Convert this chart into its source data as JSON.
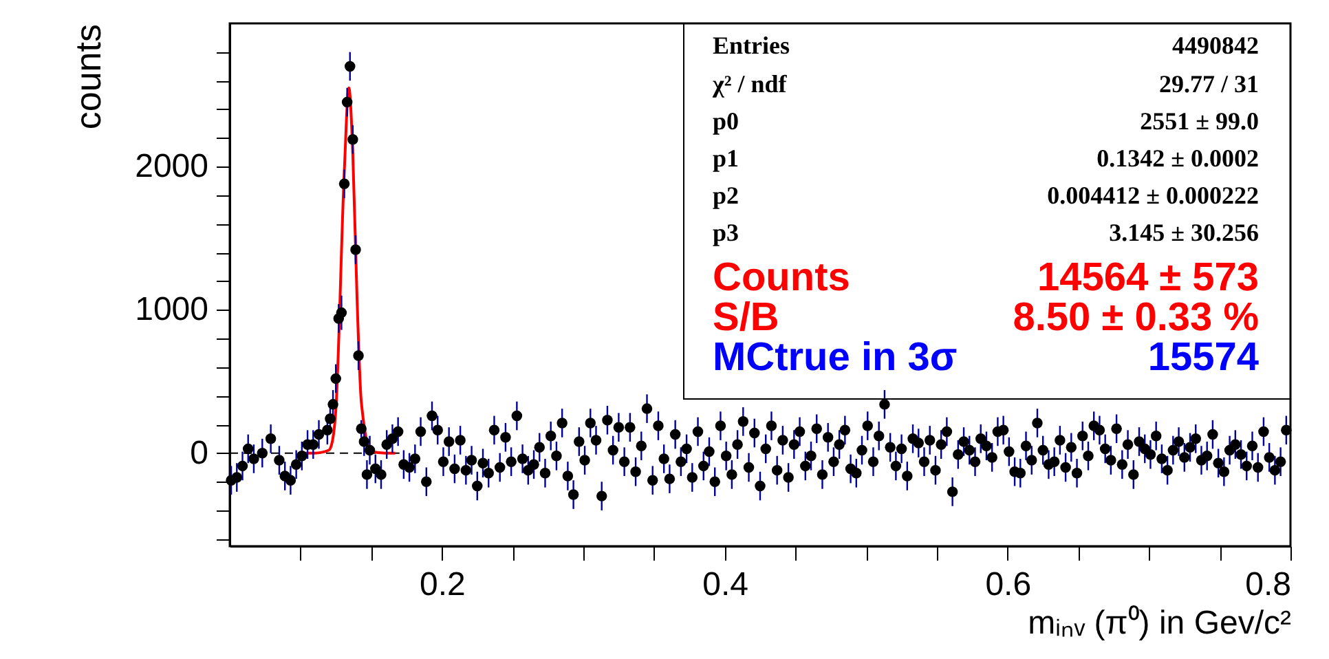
{
  "chart_data": {
    "type": "scatter",
    "xlabel": "mᵢₙᵥ (π⁰) in Gev/c²",
    "ylabel": "counts",
    "xlim": [
      0.05,
      0.8
    ],
    "ylim": [
      -650,
      3000
    ],
    "xticks": [
      {
        "value": 0.1,
        "label": null
      },
      {
        "value": 0.15,
        "label": null
      },
      0.2,
      {
        "value": 0.25,
        "label": null
      },
      {
        "value": 0.3,
        "label": null
      },
      {
        "value": 0.35,
        "label": null
      },
      0.4,
      {
        "value": 0.45,
        "label": null
      },
      {
        "value": 0.5,
        "label": null
      },
      {
        "value": 0.55,
        "label": null
      },
      0.6,
      {
        "value": 0.65,
        "label": null
      },
      {
        "value": 0.7,
        "label": null
      },
      {
        "value": 0.75,
        "label": null
      },
      0.8
    ],
    "yticks": [
      {
        "value": -600,
        "label": null
      },
      {
        "value": -400,
        "label": null
      },
      {
        "value": -200,
        "label": null
      },
      0,
      {
        "value": 200,
        "label": null
      },
      {
        "value": 400,
        "label": null
      },
      {
        "value": 600,
        "label": null
      },
      {
        "value": 800,
        "label": null
      },
      1000,
      {
        "value": 1200,
        "label": null
      },
      {
        "value": 1400,
        "label": null
      },
      {
        "value": 1600,
        "label": null
      },
      {
        "value": 1800,
        "label": null
      },
      2000,
      {
        "value": 2200,
        "label": null
      },
      {
        "value": 2400,
        "label": null
      },
      {
        "value": 2600,
        "label": null
      },
      {
        "value": 2800,
        "label": null
      }
    ],
    "annotations": [
      "Entries",
      "4490842",
      "χ² / ndf",
      "29.77 / 31",
      "p0",
      "2551  ± 99.0",
      "p1",
      "0.1342  ± 0.0002",
      "p2",
      "0.004412  ± 0.000222",
      "p3",
      "3.145  ± 30.256",
      "Counts",
      "14564  ± 573",
      "S/B",
      "8.50  ± 0.33 %",
      "MCtrue in 3σ",
      "15574"
    ],
    "series": [
      {
        "type": "line",
        "color": "#000000",
        "line_style": "dashed",
        "x": [
          0.05,
          0.17
        ],
        "values": [
          0,
          0
        ]
      },
      {
        "color": "#000000",
        "marker": "circle",
        "errors": [
          100,
          100,
          100,
          100,
          100,
          100,
          100,
          100,
          100,
          100,
          100,
          100,
          100,
          100,
          100,
          100,
          80,
          100,
          100,
          100,
          120,
          100,
          100,
          100,
          100,
          100,
          100,
          60,
          100,
          100,
          100,
          100,
          100,
          100,
          100,
          100,
          100,
          100,
          100,
          100,
          100,
          100,
          100,
          100,
          100,
          100,
          100,
          100,
          100,
          100,
          100,
          100,
          100,
          100,
          100,
          100,
          100,
          100,
          100,
          100,
          100,
          100,
          100,
          100,
          100,
          100,
          100,
          100,
          100,
          100,
          100,
          100,
          100,
          100,
          100,
          100,
          100,
          100,
          100,
          100,
          100,
          100,
          100,
          100,
          100,
          100,
          100,
          100,
          100,
          100,
          100,
          100,
          100,
          100,
          100,
          100,
          100,
          100,
          100,
          100,
          100,
          100,
          100,
          100,
          100,
          100,
          100,
          100,
          100,
          100,
          100,
          100,
          100,
          100,
          100,
          100,
          100,
          100,
          100,
          100,
          100,
          100,
          100,
          100,
          100,
          100,
          100,
          100,
          100,
          100,
          100,
          100,
          100,
          100,
          100,
          100,
          100,
          100,
          100,
          100,
          100,
          100,
          100,
          100,
          100,
          100,
          100,
          100,
          100,
          100,
          100,
          100,
          100,
          100,
          100,
          100,
          100,
          100,
          100,
          100,
          100,
          100,
          100,
          100,
          100,
          100,
          100,
          100,
          100,
          100,
          100,
          100,
          100,
          100,
          100,
          100,
          100,
          100,
          100,
          100,
          100,
          100,
          100,
          100,
          100,
          100,
          100,
          100,
          100,
          100,
          100,
          100,
          100
        ],
        "x": [
          0.051,
          0.055,
          0.059,
          0.063,
          0.067,
          0.073,
          0.079,
          0.085,
          0.089,
          0.093,
          0.097,
          0.101,
          0.105,
          0.109,
          0.113,
          0.119,
          0.121,
          0.123,
          0.125,
          0.127,
          0.129,
          0.131,
          0.133,
          0.135,
          0.137,
          0.139,
          0.141,
          0.143,
          0.145,
          0.147,
          0.149,
          0.153,
          0.157,
          0.161,
          0.165,
          0.169,
          0.173,
          0.177,
          0.181,
          0.185,
          0.189,
          0.193,
          0.197,
          0.201,
          0.205,
          0.209,
          0.213,
          0.217,
          0.221,
          0.225,
          0.229,
          0.233,
          0.237,
          0.241,
          0.245,
          0.249,
          0.253,
          0.257,
          0.261,
          0.265,
          0.269,
          0.273,
          0.277,
          0.281,
          0.285,
          0.289,
          0.293,
          0.297,
          0.301,
          0.305,
          0.309,
          0.313,
          0.317,
          0.321,
          0.325,
          0.329,
          0.333,
          0.337,
          0.341,
          0.345,
          0.349,
          0.353,
          0.357,
          0.361,
          0.365,
          0.369,
          0.373,
          0.377,
          0.381,
          0.385,
          0.389,
          0.393,
          0.397,
          0.401,
          0.405,
          0.409,
          0.413,
          0.417,
          0.421,
          0.425,
          0.429,
          0.433,
          0.437,
          0.441,
          0.445,
          0.449,
          0.453,
          0.457,
          0.461,
          0.465,
          0.469,
          0.473,
          0.477,
          0.481,
          0.485,
          0.489,
          0.493,
          0.497,
          0.501,
          0.505,
          0.509,
          0.513,
          0.517,
          0.521,
          0.525,
          0.529,
          0.533,
          0.537,
          0.541,
          0.545,
          0.549,
          0.553,
          0.557,
          0.561,
          0.565,
          0.569,
          0.573,
          0.577,
          0.581,
          0.585,
          0.589,
          0.593,
          0.597,
          0.601,
          0.605,
          0.609,
          0.613,
          0.617,
          0.621,
          0.625,
          0.629,
          0.633,
          0.637,
          0.641,
          0.645,
          0.649,
          0.653,
          0.657,
          0.661,
          0.665,
          0.669,
          0.673,
          0.677,
          0.681,
          0.685,
          0.689,
          0.693,
          0.697,
          0.701,
          0.705,
          0.709,
          0.713,
          0.717,
          0.721,
          0.725,
          0.729,
          0.733,
          0.737,
          0.741,
          0.745,
          0.749,
          0.753,
          0.757,
          0.761,
          0.765,
          0.769,
          0.773,
          0.777,
          0.781,
          0.785,
          0.789,
          0.793,
          0.797
        ],
        "values": [
          -190,
          -170,
          -90,
          30,
          -40,
          0,
          100,
          -50,
          -160,
          -190,
          -80,
          -20,
          60,
          60,
          130,
          160,
          240,
          340,
          520,
          940,
          980,
          1880,
          2450,
          2700,
          2190,
          1420,
          680,
          170,
          80,
          -150,
          20,
          -110,
          -150,
          60,
          100,
          150,
          -80,
          -100,
          -40,
          150,
          -200,
          260,
          160,
          -60,
          80,
          -110,
          90,
          -120,
          -50,
          -230,
          -70,
          -140,
          160,
          -100,
          110,
          -60,
          260,
          -40,
          -120,
          -80,
          40,
          -140,
          120,
          -20,
          210,
          -160,
          -290,
          80,
          -50,
          210,
          90,
          -300,
          230,
          20,
          180,
          -60,
          180,
          -130,
          50,
          310,
          -190,
          190,
          -40,
          -180,
          130,
          -60,
          30,
          -170,
          150,
          -90,
          10,
          -200,
          190,
          -20,
          -150,
          60,
          220,
          -100,
          140,
          -230,
          30,
          190,
          -120,
          90,
          -170,
          60,
          150,
          -90,
          -20,
          170,
          -150,
          110,
          -60,
          60,
          160,
          -110,
          -140,
          20,
          190,
          -60,
          120,
          340,
          40,
          -90,
          30,
          -160,
          100,
          70,
          -60,
          90,
          -120,
          60,
          150,
          -270,
          -10,
          80,
          20,
          -60,
          100,
          50,
          -30,
          150,
          160,
          10,
          -130,
          -140,
          50,
          -50,
          210,
          20,
          -80,
          -60,
          90,
          -100,
          40,
          -140,
          120,
          -20,
          190,
          160,
          30,
          -50,
          170,
          -80,
          60,
          -150,
          80,
          30,
          -10,
          120,
          -40,
          -120,
          20,
          80,
          -30,
          40,
          100,
          -50,
          -20,
          130,
          -70,
          -130,
          20,
          60,
          -10,
          -90,
          50,
          -100,
          150,
          -30,
          -120,
          -60,
          160
        ]
      },
      {
        "type": "line",
        "color": "#ff0000",
        "line_style": "solid",
        "x": [
          0.1,
          0.11,
          0.12,
          0.1225,
          0.125,
          0.131,
          0.1342,
          0.137,
          0.14,
          0.143,
          0.15,
          0.16,
          0.167
        ],
        "values": [
          0,
          0,
          20,
          80,
          300,
          1970,
          2550,
          2090,
          1080,
          360,
          10,
          0,
          0
        ]
      }
    ]
  }
}
